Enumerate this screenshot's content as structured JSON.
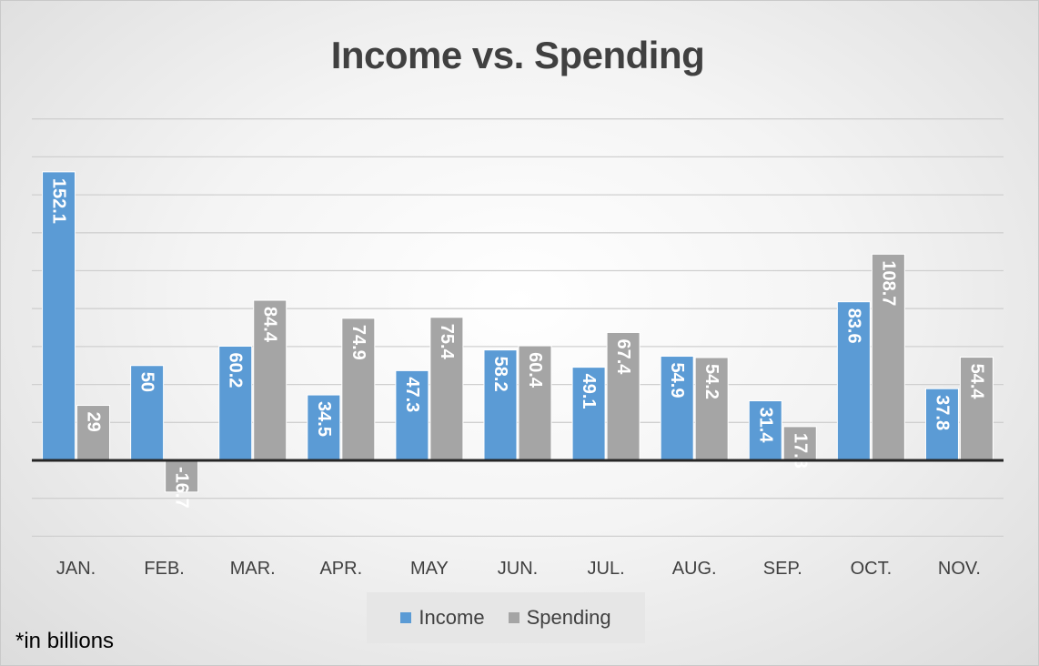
{
  "chart_data": {
    "type": "bar",
    "title": "Income vs. Spending",
    "categories": [
      "JAN.",
      "FEB.",
      "MAR.",
      "APR.",
      "MAY",
      "JUN.",
      "JUL.",
      "AUG.",
      "SEP.",
      "OCT.",
      "NOV."
    ],
    "series": [
      {
        "name": "Income",
        "color": "#5b9bd5",
        "values": [
          152.1,
          50,
          60.2,
          34.5,
          47.3,
          58.2,
          49.1,
          54.9,
          31.4,
          83.6,
          37.8
        ]
      },
      {
        "name": "Spending",
        "color": "#a5a5a5",
        "values": [
          29,
          -16.7,
          84.4,
          74.9,
          75.4,
          60.4,
          67.4,
          54.2,
          17.8,
          108.7,
          54.4
        ]
      }
    ],
    "ylim": [
      -40,
      180
    ],
    "grid": true,
    "legend_position": "bottom",
    "footnote": "*in billions"
  }
}
